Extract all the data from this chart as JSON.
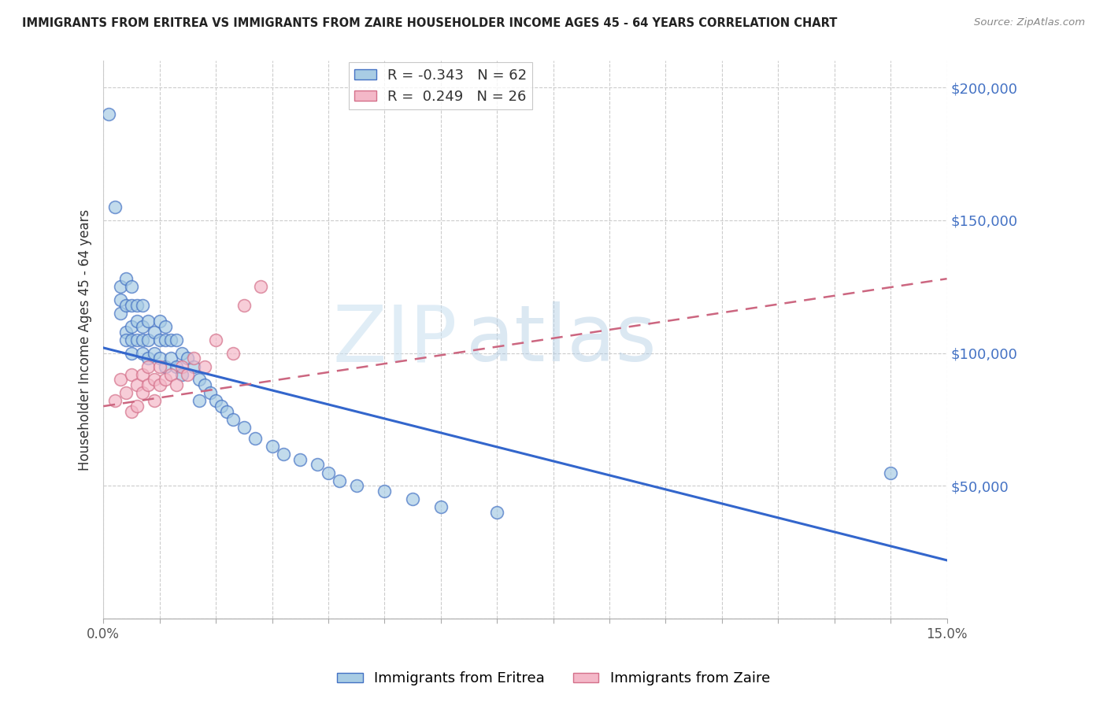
{
  "title": "IMMIGRANTS FROM ERITREA VS IMMIGRANTS FROM ZAIRE HOUSEHOLDER INCOME AGES 45 - 64 YEARS CORRELATION CHART",
  "source": "Source: ZipAtlas.com",
  "ylabel": "Householder Income Ages 45 - 64 years",
  "xlim": [
    0.0,
    0.15
  ],
  "ylim": [
    0,
    210000
  ],
  "legend_eritrea_r": "R = -0.343",
  "legend_eritrea_n": "N = 62",
  "legend_zaire_r": "R =  0.249",
  "legend_zaire_n": "N = 26",
  "color_eritrea_fill": "#a8cce4",
  "color_eritrea_edge": "#4472c4",
  "color_zaire_fill": "#f4b8c8",
  "color_zaire_edge": "#d4708a",
  "line_color_eritrea": "#3366cc",
  "line_color_zaire": "#cc6680",
  "watermark_zip": "ZIP",
  "watermark_atlas": "atlas",
  "eritrea_x": [
    0.001,
    0.002,
    0.003,
    0.003,
    0.003,
    0.004,
    0.004,
    0.004,
    0.004,
    0.005,
    0.005,
    0.005,
    0.005,
    0.005,
    0.006,
    0.006,
    0.006,
    0.007,
    0.007,
    0.007,
    0.007,
    0.008,
    0.008,
    0.008,
    0.009,
    0.009,
    0.01,
    0.01,
    0.01,
    0.011,
    0.011,
    0.011,
    0.012,
    0.012,
    0.013,
    0.013,
    0.014,
    0.014,
    0.015,
    0.016,
    0.017,
    0.017,
    0.018,
    0.019,
    0.02,
    0.021,
    0.022,
    0.023,
    0.025,
    0.027,
    0.03,
    0.032,
    0.035,
    0.038,
    0.04,
    0.042,
    0.045,
    0.05,
    0.055,
    0.06,
    0.07,
    0.14
  ],
  "eritrea_y": [
    190000,
    155000,
    125000,
    120000,
    115000,
    128000,
    118000,
    108000,
    105000,
    125000,
    118000,
    110000,
    105000,
    100000,
    118000,
    112000,
    105000,
    118000,
    110000,
    105000,
    100000,
    112000,
    105000,
    98000,
    108000,
    100000,
    112000,
    105000,
    98000,
    110000,
    105000,
    95000,
    105000,
    98000,
    105000,
    95000,
    100000,
    92000,
    98000,
    95000,
    90000,
    82000,
    88000,
    85000,
    82000,
    80000,
    78000,
    75000,
    72000,
    68000,
    65000,
    62000,
    60000,
    58000,
    55000,
    52000,
    50000,
    48000,
    45000,
    42000,
    40000,
    55000
  ],
  "zaire_x": [
    0.002,
    0.003,
    0.004,
    0.005,
    0.005,
    0.006,
    0.006,
    0.007,
    0.007,
    0.008,
    0.008,
    0.009,
    0.009,
    0.01,
    0.01,
    0.011,
    0.012,
    0.013,
    0.014,
    0.015,
    0.016,
    0.018,
    0.02,
    0.023,
    0.025,
    0.028
  ],
  "zaire_y": [
    82000,
    90000,
    85000,
    92000,
    78000,
    88000,
    80000,
    92000,
    85000,
    95000,
    88000,
    90000,
    82000,
    95000,
    88000,
    90000,
    92000,
    88000,
    95000,
    92000,
    98000,
    95000,
    105000,
    100000,
    118000,
    125000
  ],
  "eritrea_line_x": [
    0.0,
    0.15
  ],
  "eritrea_line_y": [
    102000,
    22000
  ],
  "zaire_line_x": [
    0.0,
    0.15
  ],
  "zaire_line_y": [
    80000,
    128000
  ]
}
